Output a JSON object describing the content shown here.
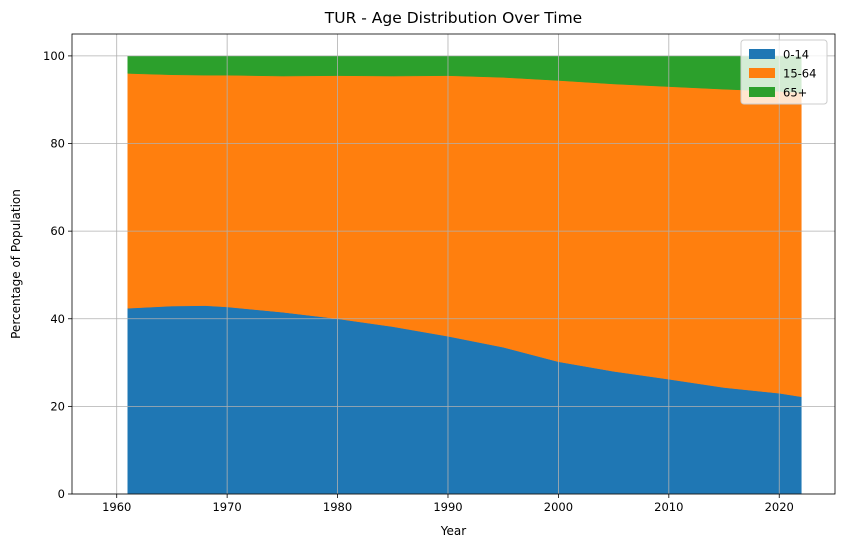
{
  "chart_data": {
    "type": "area",
    "stacked": true,
    "title": "TUR - Age Distribution Over Time",
    "xlabel": "Year",
    "ylabel": "Percentage of Population",
    "xlim": [
      1955.95,
      2025.05
    ],
    "ylim": [
      0,
      105
    ],
    "x_ticks": [
      1960,
      1970,
      1980,
      1990,
      2000,
      2010,
      2020
    ],
    "y_ticks": [
      0,
      20,
      40,
      60,
      80,
      100
    ],
    "grid": true,
    "legend_position": "top-right",
    "x": [
      1961,
      1965,
      1968,
      1970,
      1975,
      1980,
      1985,
      1990,
      1995,
      2000,
      2005,
      2010,
      2015,
      2020,
      2022
    ],
    "series": [
      {
        "name": "0-14",
        "color": "#1f77b4",
        "values": [
          42.4,
          42.9,
          43.0,
          42.7,
          41.5,
          40.0,
          38.2,
          36.0,
          33.5,
          30.2,
          28.0,
          26.2,
          24.3,
          23.0,
          22.2
        ]
      },
      {
        "name": "15-64",
        "color": "#ff7f0e",
        "values": [
          53.6,
          52.8,
          52.6,
          52.9,
          53.9,
          55.5,
          57.2,
          59.5,
          61.6,
          64.2,
          65.6,
          66.8,
          68.1,
          68.9,
          69.4
        ]
      },
      {
        "name": "65+",
        "color": "#2ca02c",
        "values": [
          4.0,
          4.3,
          4.4,
          4.4,
          4.6,
          4.5,
          4.6,
          4.5,
          4.9,
          5.6,
          6.4,
          7.0,
          7.6,
          8.1,
          8.4
        ]
      }
    ]
  }
}
